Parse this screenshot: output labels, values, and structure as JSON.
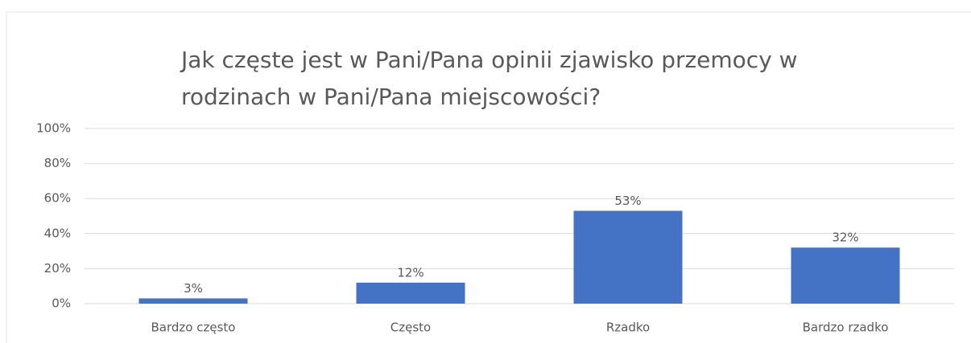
{
  "chart_data": {
    "type": "bar",
    "title": "Jak częste jest w Pani/Pana opinii zjawisko przemocy w rodzinach w Pani/Pana miejscowości?",
    "categories": [
      "Bardzo często",
      "Często",
      "Rzadko",
      "Bardzo rzadko"
    ],
    "values": [
      3,
      12,
      53,
      32
    ],
    "value_labels": [
      "3%",
      "12%",
      "53%",
      "32%"
    ],
    "color": "#4472c4",
    "ylim": [
      0,
      100
    ],
    "yticks": [
      {
        "value": 0,
        "label": "0%"
      },
      {
        "value": 20,
        "label": "20%"
      },
      {
        "value": 40,
        "label": "40%"
      },
      {
        "value": 60,
        "label": "60%"
      },
      {
        "value": 80,
        "label": "80%"
      },
      {
        "value": 100,
        "label": "100%"
      }
    ],
    "grid": true
  }
}
